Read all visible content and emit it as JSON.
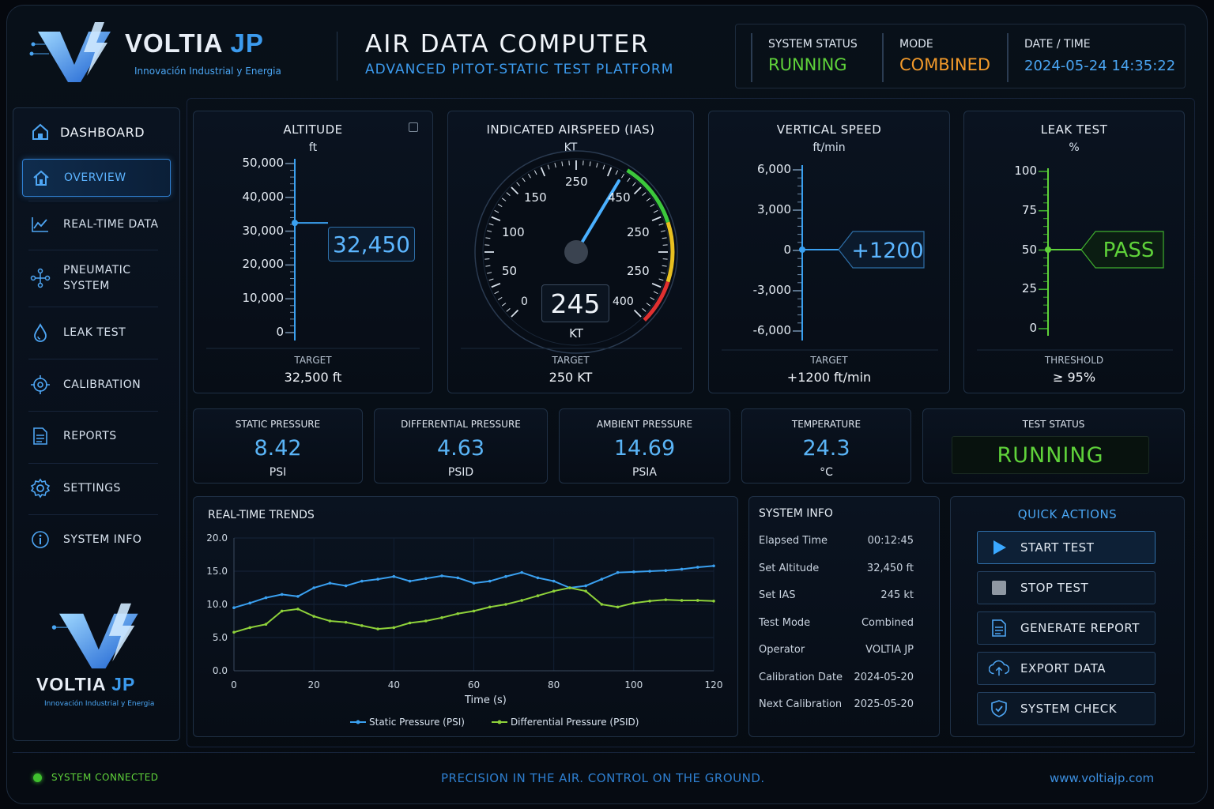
{
  "brand": {
    "name_a": "VOLTIA",
    "name_b": "JP",
    "tagline": "Innovación Industrial y Energia"
  },
  "header": {
    "title": "AIR DATA COMPUTER",
    "subtitle": "ADVANCED PITOT-STATIC TEST PLATFORM"
  },
  "status": {
    "system": {
      "label": "SYSTEM STATUS",
      "value": "RUNNING",
      "color": "#5fd23a"
    },
    "mode": {
      "label": "MODE",
      "value": "COMBINED",
      "color": "#f39a2a"
    },
    "datetime": {
      "label": "DATE / TIME",
      "value": "2024-05-24 14:35:22",
      "color": "#4aa5f2"
    }
  },
  "sidebar": {
    "heading": "DASHBOARD",
    "items": [
      {
        "label": "OVERVIEW",
        "icon": "home-icon",
        "active": true
      },
      {
        "label": "REAL-TIME DATA",
        "icon": "chart-line-icon"
      },
      {
        "label": "PNEUMATIC",
        "label2": "SYSTEM",
        "icon": "network-icon"
      },
      {
        "label": "LEAK TEST",
        "icon": "droplet-icon"
      },
      {
        "label": "CALIBRATION",
        "icon": "target-icon"
      },
      {
        "label": "REPORTS",
        "icon": "document-icon"
      },
      {
        "label": "SETTINGS",
        "icon": "gear-icon"
      },
      {
        "label": "SYSTEM INFO",
        "icon": "info-icon"
      }
    ]
  },
  "gauges": {
    "altitude": {
      "title": "ALTITUDE",
      "unit": "ft",
      "ticks": [
        "50,000",
        "40,000",
        "30,000",
        "20,000",
        "10,000",
        "0"
      ],
      "min": 0,
      "max": 50000,
      "value": 32450,
      "readout": "32,450",
      "target_label": "TARGET",
      "target_value": "32,500 ft"
    },
    "ias": {
      "title": "INDICATED AIRSPEED (IAS)",
      "unit": "KT",
      "dial_labels": [
        "0",
        "50",
        "100",
        "150",
        "250",
        "450",
        "250",
        "250",
        "400"
      ],
      "value_display": "245",
      "value_unit": "KT",
      "target_label": "TARGET",
      "target_value": "250 KT"
    },
    "vs": {
      "title": "VERTICAL SPEED",
      "unit": "ft/min",
      "ticks": [
        "6,000",
        "3,000",
        "0",
        "-3,000",
        "-6,000"
      ],
      "min": -6000,
      "max": 6000,
      "value": 1200,
      "readout": "+1200",
      "target_label": "TARGET",
      "target_value": "+1200 ft/min"
    },
    "leak": {
      "title": "LEAK TEST",
      "unit": "%",
      "ticks": [
        "100",
        "75",
        "50",
        "25",
        "0"
      ],
      "min": 0,
      "max": 100,
      "value": 50,
      "readout": "PASS",
      "target_label": "THRESHOLD",
      "target_value": "≥ 95%"
    }
  },
  "metrics": [
    {
      "label": "STATIC PRESSURE",
      "value": "8.42",
      "unit": "PSI"
    },
    {
      "label": "DIFFERENTIAL PRESSURE",
      "value": "4.63",
      "unit": "PSID"
    },
    {
      "label": "AMBIENT PRESSURE",
      "value": "14.69",
      "unit": "PSIA"
    },
    {
      "label": "TEMPERATURE",
      "value": "24.3",
      "unit": "°C"
    }
  ],
  "test_status": {
    "label": "TEST STATUS",
    "value": "RUNNING"
  },
  "chart_data": {
    "type": "line",
    "title": "REAL-TIME TRENDS",
    "xlabel": "Time (s)",
    "ylabel": "",
    "xlim": [
      0,
      120
    ],
    "ylim": [
      0,
      20
    ],
    "xticks": [
      "0",
      "20",
      "40",
      "60",
      "80",
      "100",
      "120"
    ],
    "yticks": [
      "20.0",
      "15.0",
      "10.0",
      "5.0",
      "0.0"
    ],
    "legend": "bottom",
    "grid": true,
    "series": [
      {
        "name": "Static Pressure (PSI)",
        "color": "#3aa0f0",
        "x": [
          0,
          4,
          8,
          12,
          16,
          20,
          24,
          28,
          32,
          36,
          40,
          44,
          48,
          52,
          56,
          60,
          64,
          68,
          72,
          76,
          80,
          84,
          88,
          92,
          96,
          100,
          104,
          108,
          112,
          116,
          120
        ],
        "y": [
          9.5,
          10.2,
          11,
          11.5,
          11.2,
          12.5,
          13.2,
          12.8,
          13.5,
          13.8,
          14.2,
          13.5,
          13.9,
          14.3,
          14,
          13.2,
          13.5,
          14.2,
          14.8,
          14,
          13.5,
          12.5,
          12.8,
          13.8,
          14.8,
          14.9,
          15,
          15.1,
          15.3,
          15.6,
          15.8
        ]
      },
      {
        "name": "Differential Pressure (PSID)",
        "color": "#8ed13a",
        "x": [
          0,
          4,
          8,
          12,
          16,
          20,
          24,
          28,
          32,
          36,
          40,
          44,
          48,
          52,
          56,
          60,
          64,
          68,
          72,
          76,
          80,
          84,
          88,
          92,
          96,
          100,
          104,
          108,
          112,
          116,
          120
        ],
        "y": [
          5.8,
          6.5,
          7,
          9,
          9.3,
          8.2,
          7.5,
          7.3,
          6.8,
          6.3,
          6.5,
          7.2,
          7.5,
          8,
          8.6,
          9,
          9.6,
          10,
          10.6,
          11.3,
          12,
          12.5,
          12,
          10,
          9.6,
          10.2,
          10.5,
          10.7,
          10.6,
          10.6,
          10.5
        ]
      }
    ]
  },
  "system_info": {
    "title": "SYSTEM INFO",
    "rows": [
      {
        "k": "Elapsed Time",
        "v": "00:12:45"
      },
      {
        "k": "Set Altitude",
        "v": "32,450 ft"
      },
      {
        "k": "Set IAS",
        "v": "245 kt"
      },
      {
        "k": "Test Mode",
        "v": "Combined"
      },
      {
        "k": "Operator",
        "v": "VOLTIA JP"
      },
      {
        "k": "Calibration Date",
        "v": "2024-05-20"
      },
      {
        "k": "Next Calibration",
        "v": "2025-05-20"
      }
    ]
  },
  "quick_actions": {
    "title": "QUICK ACTIONS",
    "buttons": [
      {
        "label": "START TEST",
        "icon": "play-icon"
      },
      {
        "label": "STOP TEST",
        "icon": "stop-icon"
      },
      {
        "label": "GENERATE REPORT",
        "icon": "document-icon"
      },
      {
        "label": "EXPORT DATA",
        "icon": "cloud-upload-icon"
      },
      {
        "label": "SYSTEM CHECK",
        "icon": "shield-check-icon"
      }
    ]
  },
  "footer": {
    "connection": "SYSTEM CONNECTED",
    "slogan": "PRECISION IN THE AIR. CONTROL ON THE GROUND.",
    "url": "www.voltiajp.com"
  }
}
